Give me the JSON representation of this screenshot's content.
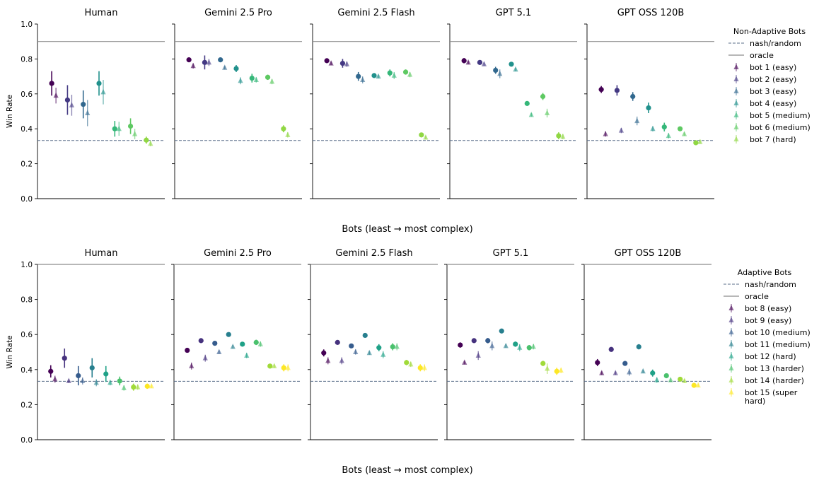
{
  "chart_data": [
    {
      "type": "scatter",
      "row": "non-adaptive",
      "legend": {
        "title": "Non-Adaptive Bots",
        "placement": "right",
        "reference_lines": [
          "nash/random",
          "oracle"
        ],
        "series": [
          "bot 1 (easy)",
          "bot 2 (easy)",
          "bot 3 (easy)",
          "bot 4 (easy)",
          "bot 5 (medium)",
          "bot 6 (medium)",
          "bot 7 (hard)"
        ]
      },
      "colors": [
        "#440154",
        "#443983",
        "#31688e",
        "#21918c",
        "#35b779",
        "#5ec962",
        "#90d743"
      ],
      "xlabel": "Bots (least → most complex)",
      "ylabel": "Win Rate",
      "ylim": [
        0,
        1
      ],
      "yticks": [
        "0.0",
        "0.2",
        "0.4",
        "0.6",
        "0.8",
        "1.0"
      ],
      "nash": 0.333,
      "oracle": 0.9,
      "grid": false,
      "panels": [
        {
          "title": "Human",
          "circles": [
            {
              "y": 0.66,
              "err": 0.07
            },
            {
              "y": 0.565,
              "err": 0.085
            },
            {
              "y": 0.54,
              "err": 0.08
            },
            {
              "y": 0.66,
              "err": 0.07
            },
            {
              "y": 0.4,
              "err": 0.045
            },
            {
              "y": 0.415,
              "err": 0.045
            },
            {
              "y": 0.335,
              "err": 0.02
            }
          ],
          "triangles": [
            {
              "y": 0.59,
              "err": 0.045
            },
            {
              "y": 0.535,
              "err": 0.06
            },
            {
              "y": 0.49,
              "err": 0.075
            },
            {
              "y": 0.61,
              "err": 0.07
            },
            {
              "y": 0.4,
              "err": 0.04
            },
            {
              "y": 0.37,
              "err": 0.03
            },
            {
              "y": 0.315,
              "err": 0.015
            }
          ]
        },
        {
          "title": "Gemini 2.5 Pro",
          "circles": [
            {
              "y": 0.795,
              "err": 0.01
            },
            {
              "y": 0.78,
              "err": 0.04
            },
            {
              "y": 0.795,
              "err": 0.01
            },
            {
              "y": 0.745,
              "err": 0.02
            },
            {
              "y": 0.69,
              "err": 0.025
            },
            {
              "y": 0.695,
              "err": 0.015
            },
            {
              "y": 0.4,
              "err": 0.02
            }
          ],
          "triangles": [
            {
              "y": 0.76,
              "err": 0.015
            },
            {
              "y": 0.78,
              "err": 0.02
            },
            {
              "y": 0.75,
              "err": 0.01
            },
            {
              "y": 0.675,
              "err": 0.02
            },
            {
              "y": 0.68,
              "err": 0.015
            },
            {
              "y": 0.67,
              "err": 0.015
            },
            {
              "y": 0.365,
              "err": 0.015
            }
          ]
        },
        {
          "title": "Gemini 2.5 Flash",
          "circles": [
            {
              "y": 0.79,
              "err": 0.01
            },
            {
              "y": 0.775,
              "err": 0.025
            },
            {
              "y": 0.7,
              "err": 0.025
            },
            {
              "y": 0.705,
              "err": 0.01
            },
            {
              "y": 0.72,
              "err": 0.02
            },
            {
              "y": 0.725,
              "err": 0.015
            },
            {
              "y": 0.365,
              "err": 0.01
            }
          ],
          "triangles": [
            {
              "y": 0.775,
              "err": 0.01
            },
            {
              "y": 0.77,
              "err": 0.015
            },
            {
              "y": 0.68,
              "err": 0.02
            },
            {
              "y": 0.7,
              "err": 0.01
            },
            {
              "y": 0.705,
              "err": 0.02
            },
            {
              "y": 0.71,
              "err": 0.015
            },
            {
              "y": 0.35,
              "err": 0.01
            }
          ]
        },
        {
          "title": "GPT 5.1",
          "circles": [
            {
              "y": 0.79,
              "err": 0.015
            },
            {
              "y": 0.78,
              "err": 0.01
            },
            {
              "y": 0.735,
              "err": 0.02
            },
            {
              "y": 0.77,
              "err": 0.01
            },
            {
              "y": 0.545,
              "err": 0.01
            },
            {
              "y": 0.585,
              "err": 0.02
            },
            {
              "y": 0.36,
              "err": 0.02
            }
          ],
          "triangles": [
            {
              "y": 0.78,
              "err": 0.01
            },
            {
              "y": 0.77,
              "err": 0.01
            },
            {
              "y": 0.715,
              "err": 0.025
            },
            {
              "y": 0.74,
              "err": 0.01
            },
            {
              "y": 0.48,
              "err": 0.01
            },
            {
              "y": 0.49,
              "err": 0.025
            },
            {
              "y": 0.355,
              "err": 0.015
            }
          ]
        },
        {
          "title": "GPT OSS 120B",
          "circles": [
            {
              "y": 0.625,
              "err": 0.02
            },
            {
              "y": 0.62,
              "err": 0.03
            },
            {
              "y": 0.585,
              "err": 0.025
            },
            {
              "y": 0.52,
              "err": 0.03
            },
            {
              "y": 0.41,
              "err": 0.025
            },
            {
              "y": 0.4,
              "err": 0.01
            },
            {
              "y": 0.32,
              "err": 0.01
            }
          ],
          "triangles": [
            {
              "y": 0.37,
              "err": 0.015
            },
            {
              "y": 0.39,
              "err": 0.015
            },
            {
              "y": 0.445,
              "err": 0.025
            },
            {
              "y": 0.4,
              "err": 0.015
            },
            {
              "y": 0.36,
              "err": 0.015
            },
            {
              "y": 0.37,
              "err": 0.01
            },
            {
              "y": 0.325,
              "err": 0.01
            }
          ]
        }
      ]
    },
    {
      "type": "scatter",
      "row": "adaptive",
      "legend": {
        "title": "Adaptive Bots",
        "placement": "right",
        "reference_lines": [
          "nash/random",
          "oracle"
        ],
        "series": [
          "bot 8 (easy)",
          "bot 9 (easy)",
          "bot 10 (medium)",
          "bot 11 (medium)",
          "bot 12 (hard)",
          "bot 13 (harder)",
          "bot 14 (harder)",
          [
            "bot 15 (super",
            "hard)"
          ]
        ]
      },
      "colors": [
        "#440154",
        "#46327e",
        "#365c8d",
        "#277f8e",
        "#1fa187",
        "#4ac16d",
        "#a0da39",
        "#fde725"
      ],
      "xlabel": "Bots (least → most complex)",
      "ylabel": "Win Rate",
      "ylim": [
        0,
        1
      ],
      "yticks": [
        "0.0",
        "0.2",
        "0.4",
        "0.6",
        "0.8",
        "1.0"
      ],
      "nash": 0.333,
      "oracle": 1.0,
      "grid": false,
      "panels": [
        {
          "title": "Human",
          "circles": [
            {
              "y": 0.39,
              "err": 0.035
            },
            {
              "y": 0.465,
              "err": 0.055
            },
            {
              "y": 0.365,
              "err": 0.055
            },
            {
              "y": 0.41,
              "err": 0.055
            },
            {
              "y": 0.375,
              "err": 0.045
            },
            {
              "y": 0.335,
              "err": 0.025
            },
            {
              "y": 0.3,
              "err": 0.02
            },
            {
              "y": 0.305,
              "err": 0.015
            }
          ],
          "triangles": [
            {
              "y": 0.345,
              "err": 0.02
            },
            {
              "y": 0.335,
              "err": 0.01
            },
            {
              "y": 0.335,
              "err": 0.02
            },
            {
              "y": 0.325,
              "err": 0.02
            },
            {
              "y": 0.325,
              "err": 0.015
            },
            {
              "y": 0.295,
              "err": 0.015
            },
            {
              "y": 0.3,
              "err": 0.015
            },
            {
              "y": 0.305,
              "err": 0.01
            }
          ]
        },
        {
          "title": "Gemini 2.5 Pro",
          "circles": [
            {
              "y": 0.51,
              "err": 0.01
            },
            {
              "y": 0.565,
              "err": 0.01
            },
            {
              "y": 0.55,
              "err": 0.01
            },
            {
              "y": 0.6,
              "err": 0.01
            },
            {
              "y": 0.545,
              "err": 0.01
            },
            {
              "y": 0.555,
              "err": 0.015
            },
            {
              "y": 0.42,
              "err": 0.01
            },
            {
              "y": 0.41,
              "err": 0.02
            }
          ],
          "triangles": [
            {
              "y": 0.42,
              "err": 0.02
            },
            {
              "y": 0.465,
              "err": 0.02
            },
            {
              "y": 0.5,
              "err": 0.01
            },
            {
              "y": 0.53,
              "err": 0.01
            },
            {
              "y": 0.48,
              "err": 0.015
            },
            {
              "y": 0.545,
              "err": 0.015
            },
            {
              "y": 0.42,
              "err": 0.01
            },
            {
              "y": 0.41,
              "err": 0.02
            }
          ]
        },
        {
          "title": "Gemini 2.5 Flash",
          "circles": [
            {
              "y": 0.495,
              "err": 0.02
            },
            {
              "y": 0.555,
              "err": 0.01
            },
            {
              "y": 0.535,
              "err": 0.01
            },
            {
              "y": 0.595,
              "err": 0.01
            },
            {
              "y": 0.525,
              "err": 0.02
            },
            {
              "y": 0.53,
              "err": 0.02
            },
            {
              "y": 0.44,
              "err": 0.015
            },
            {
              "y": 0.41,
              "err": 0.02
            }
          ],
          "triangles": [
            {
              "y": 0.45,
              "err": 0.02
            },
            {
              "y": 0.45,
              "err": 0.02
            },
            {
              "y": 0.5,
              "err": 0.015
            },
            {
              "y": 0.495,
              "err": 0.01
            },
            {
              "y": 0.485,
              "err": 0.02
            },
            {
              "y": 0.53,
              "err": 0.02
            },
            {
              "y": 0.43,
              "err": 0.015
            },
            {
              "y": 0.41,
              "err": 0.02
            }
          ]
        },
        {
          "title": "GPT 5.1",
          "circles": [
            {
              "y": 0.54,
              "err": 0.015
            },
            {
              "y": 0.565,
              "err": 0.01
            },
            {
              "y": 0.565,
              "err": 0.015
            },
            {
              "y": 0.62,
              "err": 0.01
            },
            {
              "y": 0.545,
              "err": 0.015
            },
            {
              "y": 0.525,
              "err": 0.015
            },
            {
              "y": 0.435,
              "err": 0.015
            },
            {
              "y": 0.39,
              "err": 0.02
            }
          ],
          "triangles": [
            {
              "y": 0.44,
              "err": 0.01
            },
            {
              "y": 0.48,
              "err": 0.025
            },
            {
              "y": 0.535,
              "err": 0.025
            },
            {
              "y": 0.535,
              "err": 0.01
            },
            {
              "y": 0.525,
              "err": 0.02
            },
            {
              "y": 0.53,
              "err": 0.015
            },
            {
              "y": 0.405,
              "err": 0.03
            },
            {
              "y": 0.395,
              "err": 0.015
            }
          ]
        },
        {
          "title": "GPT OSS 120B",
          "circles": [
            {
              "y": 0.44,
              "err": 0.02
            },
            {
              "y": 0.515,
              "err": 0.01
            },
            {
              "y": 0.435,
              "err": 0.01
            },
            {
              "y": 0.53,
              "err": 0.015
            },
            {
              "y": 0.38,
              "err": 0.02
            },
            {
              "y": 0.365,
              "err": 0.01
            },
            {
              "y": 0.345,
              "err": 0.01
            },
            {
              "y": 0.31,
              "err": 0.01
            }
          ],
          "triangles": [
            {
              "y": 0.38,
              "err": 0.01
            },
            {
              "y": 0.38,
              "err": 0.01
            },
            {
              "y": 0.385,
              "err": 0.02
            },
            {
              "y": 0.39,
              "err": 0.01
            },
            {
              "y": 0.34,
              "err": 0.015
            },
            {
              "y": 0.34,
              "err": 0.01
            },
            {
              "y": 0.335,
              "err": 0.01
            },
            {
              "y": 0.31,
              "err": 0.01
            }
          ]
        }
      ]
    }
  ]
}
